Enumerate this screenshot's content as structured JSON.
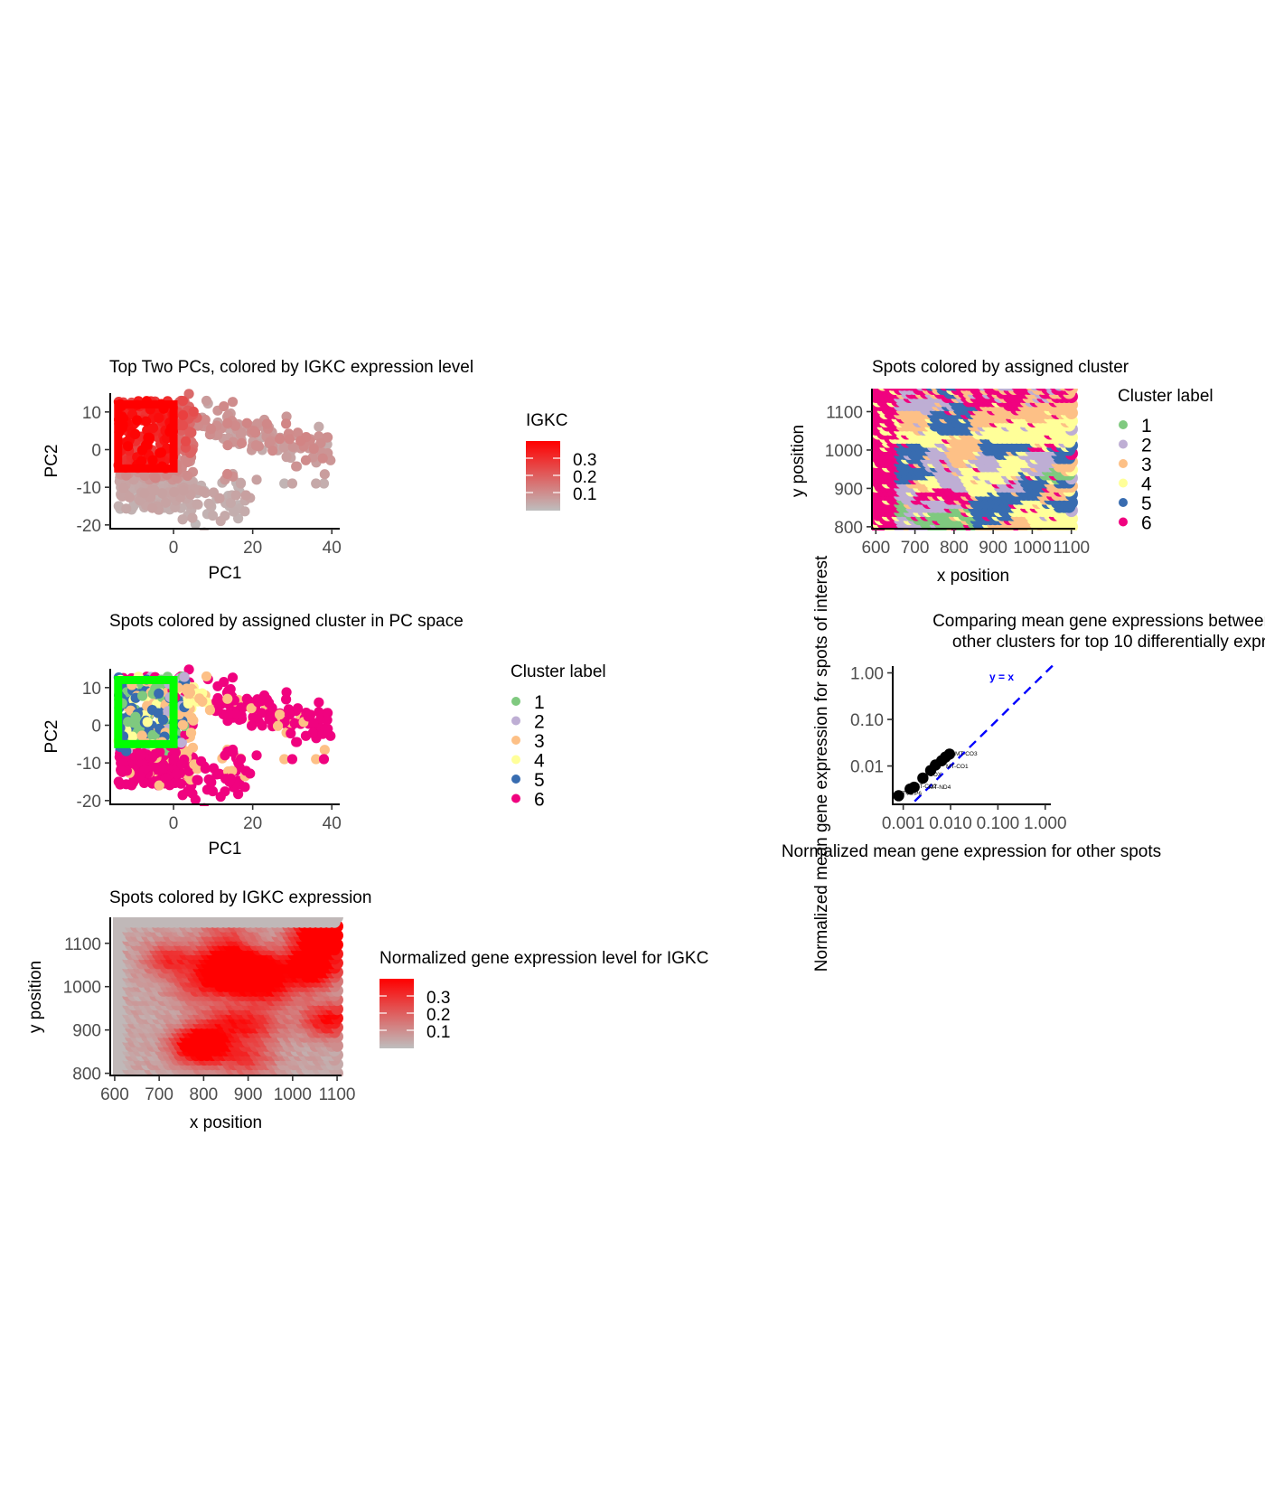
{
  "colors": {
    "cluster": {
      "1": "#7fc97f",
      "2": "#beaed4",
      "3": "#fdc086",
      "4": "#ffff99",
      "5": "#386cb0",
      "6": "#f0027f"
    },
    "expr_low": "#bebebe",
    "expr_high": "#ff0000",
    "highlight_red": "#ff0000",
    "highlight_green": "#00ff00",
    "ref_line": "#0000ff"
  },
  "chart_data": [
    {
      "id": "pc_igkc",
      "type": "scatter",
      "title": "Top Two PCs, colored by IGKC expression level",
      "xlabel": "PC1",
      "ylabel": "PC2",
      "xlim": [
        -16,
        42
      ],
      "ylim": [
        -21,
        15
      ],
      "xticks": [
        "0",
        "20",
        "40"
      ],
      "yticks": [
        "10",
        "0",
        "-10",
        "-20"
      ],
      "legend_title": "IGKC",
      "legend_labels": [
        "0.3",
        "0.2",
        "0.1"
      ],
      "color_range": [
        0.02,
        0.35
      ],
      "highlight_box": {
        "x": [
          -14,
          0
        ],
        "y": [
          -5,
          12
        ]
      }
    },
    {
      "id": "spatial_cluster",
      "type": "scatter",
      "title": "Spots colored by assigned cluster",
      "xlabel": "x position",
      "ylabel": "y position",
      "xlim": [
        590,
        1110
      ],
      "ylim": [
        795,
        1160
      ],
      "xticks": [
        "600",
        "700",
        "800",
        "900",
        "1000",
        "1100"
      ],
      "yticks": [
        "1100",
        "1000",
        "900",
        "800"
      ],
      "legend_title": "Cluster label",
      "legend_labels": [
        "1",
        "2",
        "3",
        "4",
        "5",
        "6"
      ]
    },
    {
      "id": "pc_cluster",
      "type": "scatter",
      "title": "Spots colored by assigned cluster in PC space",
      "xlabel": "PC1",
      "ylabel": "PC2",
      "xlim": [
        -16,
        42
      ],
      "ylim": [
        -21,
        15
      ],
      "xticks": [
        "0",
        "20",
        "40"
      ],
      "yticks": [
        "10",
        "0",
        "-10",
        "-20"
      ],
      "legend_title": "Cluster label",
      "legend_labels": [
        "1",
        "2",
        "3",
        "4",
        "5",
        "6"
      ],
      "highlight_box": {
        "x": [
          -14,
          0
        ],
        "y": [
          -5,
          12
        ]
      }
    },
    {
      "id": "mean_expr",
      "type": "scatter",
      "title_lines": [
        "Comparing mean gene expressions between c",
        "other clusters for top 10 differentially expr"
      ],
      "xlabel": "Normalized mean gene expression for other spots",
      "ylabel": "Normalized mean gene expression for spots of interest",
      "x_scale": "log10",
      "y_scale": "log10",
      "xlim": [
        0.0006,
        1.5
      ],
      "ylim": [
        0.0015,
        1.4
      ],
      "xticks": [
        "0.001",
        "0.010",
        "0.100",
        "1.000"
      ],
      "yticks": [
        "1.00",
        "0.10",
        "0.01"
      ],
      "ref_line_label": "y = x",
      "points": [
        {
          "x": 0.0008,
          "y": 0.0023
        },
        {
          "x": 0.0014,
          "y": 0.0032
        },
        {
          "x": 0.0017,
          "y": 0.0035
        },
        {
          "x": 0.0026,
          "y": 0.0055
        },
        {
          "x": 0.0038,
          "y": 0.008
        },
        {
          "x": 0.0048,
          "y": 0.0105
        },
        {
          "x": 0.0065,
          "y": 0.013
        },
        {
          "x": 0.0078,
          "y": 0.0155
        },
        {
          "x": 0.0095,
          "y": 0.018
        }
      ],
      "point_labels": [
        "MT-CO3",
        "MT-CO1",
        "COX",
        "MT-ND4",
        "MT-CO2",
        "MT-ATP6"
      ]
    },
    {
      "id": "spatial_igkc",
      "type": "scatter",
      "title": "Spots colored by IGKC expression",
      "xlabel": "x position",
      "ylabel": "y position",
      "xlim": [
        590,
        1110
      ],
      "ylim": [
        795,
        1160
      ],
      "xticks": [
        "600",
        "700",
        "800",
        "900",
        "1000",
        "1100"
      ],
      "yticks": [
        "1100",
        "1000",
        "900",
        "800"
      ],
      "legend_title": "Normalized gene expression level for IGKC",
      "legend_labels": [
        "0.3",
        "0.2",
        "0.1"
      ],
      "color_range": [
        0.02,
        0.35
      ]
    }
  ]
}
